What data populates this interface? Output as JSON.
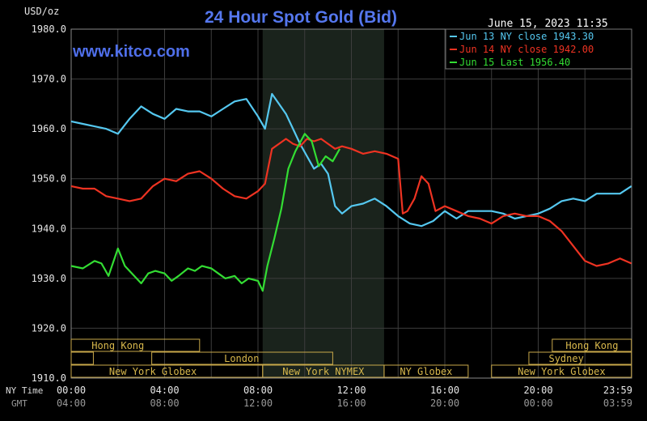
{
  "chart_data": {
    "type": "line",
    "title": "24 Hour Spot Gold (Bid)",
    "y_unit_label": "USD/oz",
    "timestamp": "June 15, 2023 11:35",
    "watermark": "www.kitco.com",
    "ylim": [
      1910,
      1980
    ],
    "y_ticks": [
      "1980.0",
      "1970.0",
      "1960.0",
      "1950.0",
      "1940.0",
      "1930.0",
      "1920.0",
      "1910.0"
    ],
    "x_row_labels": [
      "NY Time",
      "GMT"
    ],
    "x_ticks_ny": [
      "00:00",
      "04:00",
      "08:00",
      "12:00",
      "16:00",
      "20:00",
      "23:59"
    ],
    "x_ticks_gmt": [
      "04:00",
      "08:00",
      "12:00",
      "16:00",
      "20:00",
      "00:00",
      "03:59"
    ],
    "xlim_hours": [
      0,
      24
    ],
    "grid": true,
    "legend_position": "top-right",
    "shaded_session_hours": [
      8.2,
      13.4
    ],
    "series": [
      {
        "name": "Jun 13 NY close 1943.30",
        "color": "#55c8f0",
        "x_hours": [
          0,
          0.5,
          1,
          1.5,
          2,
          2.5,
          3,
          3.5,
          4,
          4.5,
          5,
          5.5,
          6,
          6.5,
          7,
          7.5,
          8,
          8.3,
          8.6,
          8.9,
          9.2,
          9.5,
          9.8,
          10.1,
          10.4,
          10.7,
          11,
          11.3,
          11.6,
          12,
          12.5,
          13,
          13.5,
          14,
          14.5,
          15,
          15.5,
          16,
          16.5,
          17,
          17.5,
          18,
          18.5,
          19,
          19.5,
          20,
          20.5,
          21,
          21.5,
          22,
          22.5,
          23,
          23.5,
          23.99
        ],
        "values": [
          1961.5,
          1961.0,
          1960.5,
          1960.0,
          1959.0,
          1962.0,
          1964.5,
          1963.0,
          1962.0,
          1964.0,
          1963.5,
          1963.5,
          1962.5,
          1964.0,
          1965.5,
          1966.0,
          1962.5,
          1960.0,
          1967.0,
          1965.0,
          1963.0,
          1960.0,
          1957.0,
          1954.5,
          1952.0,
          1953.0,
          1951.0,
          1944.5,
          1943.0,
          1944.5,
          1945.0,
          1946.0,
          1944.5,
          1942.5,
          1941.0,
          1940.5,
          1941.5,
          1943.5,
          1942.0,
          1943.5,
          1943.5,
          1943.5,
          1943.0,
          1942.0,
          1942.5,
          1943.0,
          1944.0,
          1945.5,
          1946.0,
          1945.5,
          1947.0,
          1947.0,
          1947.0,
          1948.5
        ]
      },
      {
        "name": "Jun 14 NY close 1942.00",
        "color": "#ee3322",
        "x_hours": [
          0,
          0.5,
          1,
          1.5,
          2,
          2.5,
          3,
          3.5,
          4,
          4.5,
          5,
          5.5,
          6,
          6.5,
          7,
          7.5,
          8,
          8.3,
          8.6,
          8.9,
          9.2,
          9.5,
          9.8,
          10.1,
          10.4,
          10.7,
          11,
          11.3,
          11.6,
          12,
          12.5,
          13,
          13.5,
          14,
          14.2,
          14.4,
          14.7,
          15,
          15.3,
          15.6,
          16,
          16.5,
          17,
          17.5,
          18,
          18.5,
          19,
          19.5,
          20,
          20.5,
          21,
          21.5,
          22,
          22.5,
          23,
          23.5,
          23.99
        ],
        "values": [
          1948.5,
          1948.0,
          1948.0,
          1946.5,
          1946.0,
          1945.5,
          1946.0,
          1948.5,
          1950.0,
          1949.5,
          1951.0,
          1951.5,
          1950.0,
          1948.0,
          1946.5,
          1946.0,
          1947.5,
          1949.0,
          1956.0,
          1957.0,
          1958.0,
          1957.0,
          1956.5,
          1958.0,
          1957.5,
          1958.0,
          1957.0,
          1956.0,
          1956.5,
          1956.0,
          1955.0,
          1955.5,
          1955.0,
          1954.0,
          1943.0,
          1943.5,
          1946.0,
          1950.5,
          1949.0,
          1943.5,
          1944.5,
          1943.5,
          1942.5,
          1942.0,
          1941.0,
          1942.5,
          1943.0,
          1942.5,
          1942.5,
          1941.5,
          1939.5,
          1936.5,
          1933.5,
          1932.5,
          1933.0,
          1934.0,
          1933.0
        ]
      },
      {
        "name": "Jun 15 Last 1956.40",
        "color": "#33dd33",
        "x_hours": [
          0,
          0.5,
          1,
          1.3,
          1.6,
          2,
          2.3,
          2.6,
          3,
          3.3,
          3.6,
          4,
          4.3,
          4.6,
          5,
          5.3,
          5.6,
          6,
          6.3,
          6.6,
          7,
          7.3,
          7.6,
          8,
          8.2,
          8.4,
          8.7,
          9,
          9.3,
          9.6,
          10,
          10.3,
          10.6,
          10.9,
          11.2,
          11.5
        ],
        "values": [
          1932.5,
          1932.0,
          1933.5,
          1933.0,
          1930.5,
          1936.0,
          1932.5,
          1931.0,
          1929.0,
          1931.0,
          1931.5,
          1931.0,
          1929.5,
          1930.5,
          1932.0,
          1931.5,
          1932.5,
          1932.0,
          1931.0,
          1930.0,
          1930.5,
          1929.0,
          1930.0,
          1929.5,
          1927.5,
          1932.5,
          1938.0,
          1944.0,
          1952.0,
          1955.5,
          1959.0,
          1957.5,
          1952.5,
          1954.5,
          1953.5,
          1956.0
        ]
      }
    ],
    "sessions": [
      {
        "name": "Hong Kong",
        "row": 0,
        "start": 0,
        "end": 5.5,
        "label_at": 2.0
      },
      {
        "name": "",
        "row": 1,
        "start": 0,
        "end": 0.95,
        "label_at": 0.5
      },
      {
        "name": "London",
        "row": 1,
        "start": 3.45,
        "end": 11.2,
        "label_at": 7.3
      },
      {
        "name": "New York Globex",
        "row": 2,
        "start": 0,
        "end": 8.2,
        "label_at": 3.5
      },
      {
        "name": "New York NYMEX",
        "row": 2,
        "start": 8.2,
        "end": 13.4,
        "label_at": 10.8
      },
      {
        "name": "NY Globex",
        "row": 2,
        "start": 13.4,
        "end": 17.0,
        "label_at": 15.2
      },
      {
        "name": "Hong Kong",
        "row": 0,
        "start": 20.6,
        "end": 23.99,
        "label_at": 22.3
      },
      {
        "name": "Sydney",
        "row": 1,
        "start": 19.6,
        "end": 23.99,
        "label_at": 21.2
      },
      {
        "name": "New York Globex",
        "row": 2,
        "start": 18.0,
        "end": 23.99,
        "label_at": 21.0
      }
    ]
  }
}
